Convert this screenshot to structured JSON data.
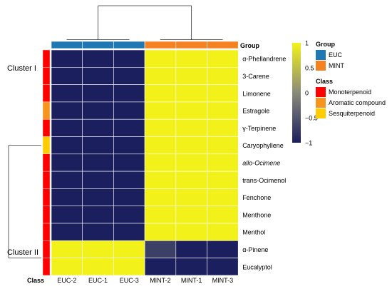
{
  "chart_data": {
    "type": "heatmap",
    "columns": [
      "EUC-2",
      "EUC-1",
      "EUC-3",
      "MINT-2",
      "MINT-1",
      "MINT-3"
    ],
    "rows": [
      "α-Phellandrene",
      "3-Carene",
      "Limonene",
      "Estragole",
      "γ-Terpinene",
      "Caryophyllene",
      "allo-Ocimene",
      "trans-Ocimenol",
      "Fenchone",
      "Menthone",
      "Menthol",
      "α-Pinene",
      "Eucalyptol"
    ],
    "values": [
      [
        -1,
        -1,
        -1,
        1,
        1,
        1
      ],
      [
        -1,
        -1,
        -1,
        1,
        1,
        1
      ],
      [
        -1,
        -1,
        -1,
        1,
        1,
        1
      ],
      [
        -1,
        -1,
        -1,
        1,
        1,
        1
      ],
      [
        -1,
        -1,
        -1,
        1,
        1,
        1
      ],
      [
        -1,
        -1,
        -1,
        1,
        1,
        1
      ],
      [
        -1,
        -1,
        -1,
        1,
        1,
        1
      ],
      [
        -1,
        -1,
        -1,
        1,
        1,
        1
      ],
      [
        -1,
        -1,
        -1,
        1,
        1,
        1
      ],
      [
        -1,
        -1,
        -1,
        1,
        1,
        1
      ],
      [
        -1,
        -1,
        -1,
        1,
        1,
        1
      ],
      [
        1,
        1,
        1,
        -0.7,
        -1,
        -1
      ],
      [
        1,
        1,
        1,
        -1,
        -1,
        -1
      ]
    ],
    "color_scale": {
      "min": -1,
      "max": 1,
      "ticks": [
        "1",
        "0.5",
        "0",
        "−0.5",
        "−1"
      ],
      "tick_values": [
        1,
        0.5,
        0,
        -0.5,
        -1
      ],
      "low_color": "#1b1f5e",
      "mid_color": "#8a8a7a",
      "high_color": "#f2f21a"
    },
    "column_annotation": {
      "title": "Group",
      "values": [
        "EUC",
        "EUC",
        "EUC",
        "MINT",
        "MINT",
        "MINT"
      ]
    },
    "row_annotation": {
      "title": "Class",
      "values": [
        "Monoterpenoid",
        "Monoterpenoid",
        "Monoterpenoid",
        "Aromatic compound",
        "Monoterpenoid",
        "Sesquiterpenoid",
        "Monoterpenoid",
        "Monoterpenoid",
        "Monoterpenoid",
        "Monoterpenoid",
        "Monoterpenoid",
        "Monoterpenoid",
        "Monoterpenoid"
      ]
    },
    "legend": {
      "group": {
        "title": "Group",
        "items": [
          {
            "label": "EUC",
            "color": "#1f78b4"
          },
          {
            "label": "MINT",
            "color": "#f58220"
          }
        ]
      },
      "class": {
        "title": "Class",
        "items": [
          {
            "label": "Monoterpenoid",
            "color": "#ff0000"
          },
          {
            "label": "Aromatic compound",
            "color": "#f7941d"
          },
          {
            "label": "Sesquiterpenoid",
            "color": "#ffcc00"
          }
        ]
      }
    },
    "clusters": [
      "Cluster I",
      "Cluster II"
    ],
    "cluster_rows": [
      [
        0,
        10
      ],
      [
        11,
        12
      ]
    ]
  }
}
